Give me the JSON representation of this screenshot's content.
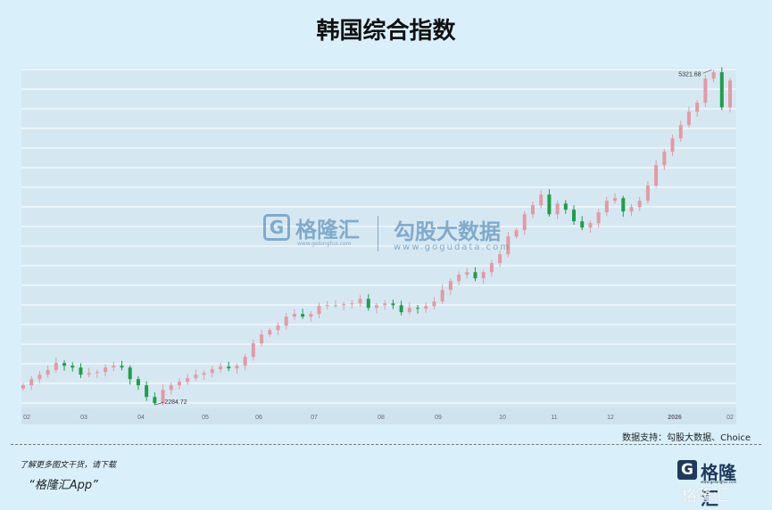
{
  "chart_data": {
    "type": "candlestick",
    "title": "韩国综合指数",
    "xlabel": "",
    "ylabel": "",
    "x_tick_labels": [
      "02",
      "03",
      "04",
      "05",
      "06",
      "07",
      "08",
      "09",
      "10",
      "11",
      "12",
      "2026",
      "02"
    ],
    "ylim": [
      2270,
      5340
    ],
    "grid": true,
    "colors": {
      "up": "#e39aa4",
      "down": "#1f9e4a",
      "grid": "#ffffff",
      "plot_bg": "#d5e8f2"
    },
    "annotations": [
      {
        "label": "5321.68",
        "kind": "high"
      },
      {
        "label": "2284.72",
        "kind": "low"
      }
    ],
    "high": 5321.68,
    "low": 2284.72,
    "closes": [
      2463,
      2519,
      2559,
      2600,
      2664,
      2640,
      2624,
      2559,
      2575,
      2583,
      2624,
      2640,
      2624,
      2519,
      2463,
      2357,
      2301,
      2422,
      2463,
      2495,
      2527,
      2559,
      2575,
      2608,
      2632,
      2616,
      2640,
      2721,
      2842,
      2923,
      2963,
      3004,
      3085,
      3109,
      3085,
      3109,
      3181,
      3189,
      3189,
      3197,
      3205,
      3246,
      3165,
      3189,
      3205,
      3189,
      3125,
      3165,
      3157,
      3181,
      3222,
      3327,
      3407,
      3464,
      3488,
      3432,
      3488,
      3569,
      3650,
      3811,
      3868,
      4013,
      4094,
      4191,
      4013,
      4110,
      4054,
      3949,
      3892,
      3932,
      4030,
      4135,
      4159,
      4038,
      4078,
      4135,
      4272,
      4457,
      4579,
      4700,
      4821,
      4942,
      5023,
      5241,
      5300,
      4982,
      5225
    ]
  },
  "source": "数据支持：勾股大数据、Choice",
  "footer": {
    "promo_line1": "了解更多图文干货，请下载",
    "promo_line2": "“格隆汇App”",
    "logo_text": "格隆汇",
    "logo_url": "www.gelonghui.com",
    "logo_watermark": "格隆汇"
  },
  "watermark": {
    "brand1": "格隆汇",
    "brand1_url": "www.gelonghui.com",
    "brand2": "勾股大数据",
    "brand2_url": "www.gogudata.com"
  }
}
